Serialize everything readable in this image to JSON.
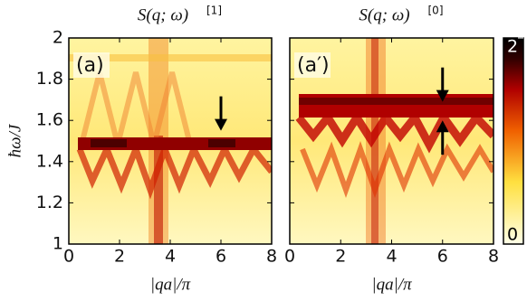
{
  "chart_data": [
    {
      "type": "heatmap",
      "title": "S(q; ω)",
      "title_superscript": "[1]",
      "panel_label": "(a)",
      "xlabel": "|qa|/π",
      "ylabel": "ħω/J",
      "xlim": [
        0,
        8
      ],
      "ylim": [
        1,
        2
      ],
      "xticks": [
        0,
        2,
        4,
        6,
        8
      ],
      "yticks": [
        1,
        1.2,
        1.4,
        1.6,
        1.8,
        2
      ],
      "ytick_labels": true,
      "annotations": [
        {
          "x": 6,
          "y": 1.55,
          "direction": "down"
        }
      ]
    },
    {
      "type": "heatmap",
      "title": "S(q; ω)",
      "title_superscript": "[0]",
      "panel_label": "(a′)",
      "xlabel": "|qa|/π",
      "xlim": [
        0,
        8
      ],
      "ylim": [
        1,
        2
      ],
      "xticks": [
        0,
        2,
        4,
        6,
        8
      ],
      "yticks": [
        1,
        1.2,
        1.4,
        1.6,
        1.8,
        2
      ],
      "ytick_labels": false,
      "annotations": [
        {
          "x": 6,
          "y": 1.69,
          "direction": "down"
        },
        {
          "x": 6,
          "y": 1.6,
          "direction": "up"
        }
      ],
      "colorbar": {
        "lim": [
          0,
          2
        ],
        "ticks": [
          0,
          2
        ]
      }
    }
  ]
}
